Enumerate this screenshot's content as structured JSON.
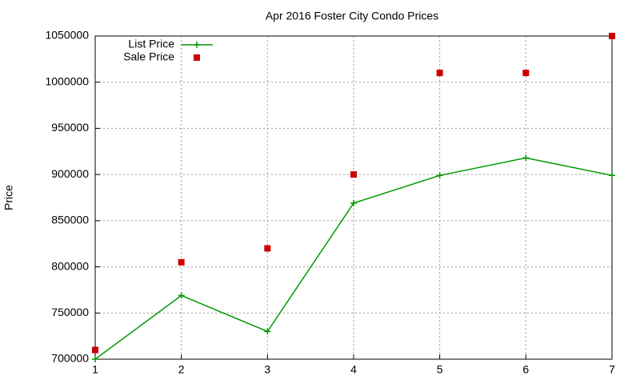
{
  "chart_data": {
    "type": "line",
    "title": "Apr 2016 Foster City Condo Prices",
    "y_label": "Price",
    "x": [
      1,
      2,
      3,
      4,
      5,
      6,
      7
    ],
    "series": [
      {
        "name": "List Price",
        "color": "#009900",
        "style": "linespoints",
        "values": [
          700000,
          769000,
          730000,
          869000,
          899000,
          918000,
          899000
        ]
      },
      {
        "name": "Sale Price",
        "color": "#cc0000",
        "style": "points",
        "values": [
          710000,
          805000,
          820000,
          900000,
          1010000,
          1010000,
          1050000
        ]
      }
    ],
    "xlim": [
      1,
      7
    ],
    "xticks": [
      1,
      2,
      3,
      4,
      5,
      6,
      7
    ],
    "ylim": [
      700000,
      1050000
    ],
    "yticks": [
      700000,
      750000,
      800000,
      850000,
      900000,
      950000,
      1000000,
      1050000
    ],
    "grid": true,
    "legend": "top-left"
  }
}
